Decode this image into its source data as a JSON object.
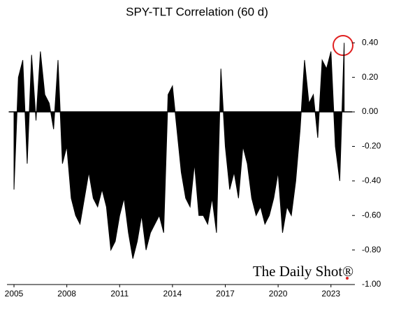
{
  "chart_data": {
    "type": "area",
    "title": "SPY-TLT Correlation (60 d)",
    "annotation": "The Daily Shot®",
    "color": "#000000",
    "x": [
      2005.0,
      2005.25,
      2005.5,
      2005.75,
      2006.0,
      2006.25,
      2006.5,
      2006.75,
      2007.0,
      2007.25,
      2007.5,
      2007.75,
      2008.0,
      2008.25,
      2008.5,
      2008.75,
      2009.0,
      2009.25,
      2009.5,
      2009.75,
      2010.0,
      2010.25,
      2010.5,
      2010.75,
      2011.0,
      2011.25,
      2011.5,
      2011.75,
      2012.0,
      2012.25,
      2012.5,
      2012.75,
      2013.0,
      2013.25,
      2013.5,
      2013.75,
      2014.0,
      2014.25,
      2014.5,
      2014.75,
      2015.0,
      2015.25,
      2015.5,
      2015.75,
      2016.0,
      2016.25,
      2016.5,
      2016.75,
      2017.0,
      2017.25,
      2017.5,
      2017.75,
      2018.0,
      2018.25,
      2018.5,
      2018.75,
      2019.0,
      2019.25,
      2019.5,
      2019.75,
      2020.0,
      2020.25,
      2020.5,
      2020.75,
      2021.0,
      2021.25,
      2021.5,
      2021.75,
      2022.0,
      2022.25,
      2022.5,
      2022.75,
      2023.0,
      2023.25,
      2023.5,
      2023.75
    ],
    "values": [
      -0.45,
      0.2,
      0.3,
      -0.3,
      0.33,
      -0.05,
      0.35,
      0.1,
      0.05,
      -0.1,
      0.3,
      -0.3,
      -0.2,
      -0.5,
      -0.6,
      -0.65,
      -0.5,
      -0.35,
      -0.5,
      -0.55,
      -0.45,
      -0.55,
      -0.8,
      -0.75,
      -0.6,
      -0.5,
      -0.7,
      -0.85,
      -0.75,
      -0.6,
      -0.8,
      -0.7,
      -0.65,
      -0.6,
      -0.7,
      0.1,
      0.15,
      -0.1,
      -0.35,
      -0.5,
      -0.55,
      -0.3,
      -0.6,
      -0.6,
      -0.65,
      -0.5,
      -0.7,
      0.25,
      -0.2,
      -0.45,
      -0.35,
      -0.5,
      -0.2,
      -0.3,
      -0.5,
      -0.6,
      -0.55,
      -0.65,
      -0.6,
      -0.5,
      -0.35,
      -0.7,
      -0.55,
      -0.6,
      -0.4,
      -0.1,
      0.3,
      0.05,
      0.1,
      -0.15,
      0.3,
      0.25,
      0.35,
      -0.2,
      -0.4,
      0.4
    ],
    "xlim": [
      2004.9,
      2024.2
    ],
    "xticks": [
      2005,
      2008,
      2011,
      2014,
      2017,
      2020,
      2023
    ],
    "ylim": [
      -1.0,
      0.45
    ],
    "yticks": [
      {
        "value": -1.0,
        "label": "-1.00"
      },
      {
        "value": -0.8,
        "label": "-0.80"
      },
      {
        "value": -0.6,
        "label": "-0.60"
      },
      {
        "value": -0.4,
        "label": "-0.40"
      },
      {
        "value": -0.2,
        "label": "-0.20"
      },
      {
        "value": 0.0,
        "label": "0.00"
      },
      {
        "value": 0.2,
        "label": "0.20"
      },
      {
        "value": 0.4,
        "label": "0.40"
      }
    ]
  }
}
